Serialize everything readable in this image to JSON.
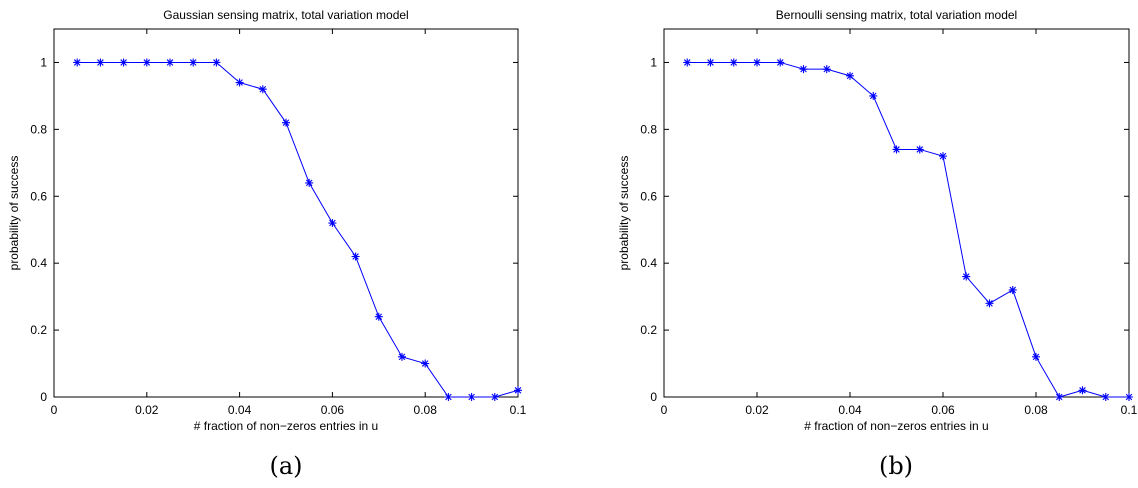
{
  "figure": {
    "captions": [
      "(a)",
      "(b)"
    ]
  },
  "chart_data": [
    {
      "type": "line",
      "title": "Gaussian sensing matrix, total variation model",
      "xlabel": "# fraction of non−zeros entries in u",
      "ylabel": "probability of success",
      "xlim": [
        0,
        0.1
      ],
      "ylim": [
        0,
        1.1
      ],
      "xticks": [
        0,
        0.02,
        0.04,
        0.06,
        0.08,
        0.1
      ],
      "xtick_labels": [
        "0",
        "0.02",
        "0.04",
        "0.06",
        "0.08",
        "0.1"
      ],
      "yticks": [
        0,
        0.2,
        0.4,
        0.6,
        0.8,
        1
      ],
      "ytick_labels": [
        "0",
        "0.2",
        "0.4",
        "0.6",
        "0.8",
        "1"
      ],
      "grid": false,
      "marker": "*",
      "color": "#0000ff",
      "series": [
        {
          "x": [
            0.005,
            0.01,
            0.015,
            0.02,
            0.025,
            0.03,
            0.035,
            0.04,
            0.045,
            0.05,
            0.055,
            0.06,
            0.065,
            0.07,
            0.075,
            0.08,
            0.085,
            0.09,
            0.095,
            0.1
          ],
          "values": [
            1,
            1,
            1,
            1,
            1,
            1,
            1,
            0.94,
            0.92,
            0.82,
            0.64,
            0.52,
            0.42,
            0.24,
            0.12,
            0.1,
            0,
            0,
            0,
            0.02
          ]
        }
      ]
    },
    {
      "type": "line",
      "title": "Bernoulli sensing matrix, total variation model",
      "xlabel": "# fraction of non−zeros entries in u",
      "ylabel": "probability of success",
      "xlim": [
        0,
        0.1
      ],
      "ylim": [
        0,
        1.1
      ],
      "xticks": [
        0,
        0.02,
        0.04,
        0.06,
        0.08,
        0.1
      ],
      "xtick_labels": [
        "0",
        "0.02",
        "0.04",
        "0.06",
        "0.08",
        "0.1"
      ],
      "yticks": [
        0,
        0.2,
        0.4,
        0.6,
        0.8,
        1
      ],
      "ytick_labels": [
        "0",
        "0.2",
        "0.4",
        "0.6",
        "0.8",
        "1"
      ],
      "grid": false,
      "marker": "*",
      "color": "#0000ff",
      "series": [
        {
          "x": [
            0.005,
            0.01,
            0.015,
            0.02,
            0.025,
            0.03,
            0.035,
            0.04,
            0.045,
            0.05,
            0.055,
            0.06,
            0.065,
            0.07,
            0.075,
            0.08,
            0.085,
            0.09,
            0.095,
            0.1
          ],
          "values": [
            1,
            1,
            1,
            1,
            1,
            0.98,
            0.98,
            0.96,
            0.9,
            0.74,
            0.74,
            0.72,
            0.36,
            0.28,
            0.32,
            0.12,
            0,
            0.02,
            0,
            0
          ]
        }
      ]
    }
  ]
}
